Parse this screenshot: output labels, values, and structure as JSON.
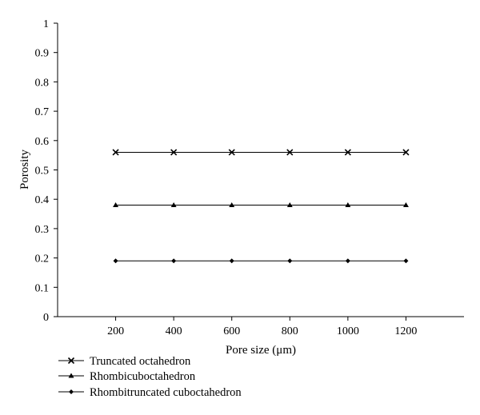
{
  "chart_data": {
    "type": "line",
    "xlabel": "Pore size (μm)",
    "ylabel": "Porosity",
    "x": [
      200,
      400,
      600,
      800,
      1000,
      1200
    ],
    "xlim": [
      0,
      1400
    ],
    "ylim": [
      0,
      1
    ],
    "x_ticks": [
      "200",
      "400",
      "600",
      "800",
      "1000",
      "1200"
    ],
    "y_ticks": [
      "0",
      "0.1",
      "0.2",
      "0.3",
      "0.4",
      "0.5",
      "0.6",
      "0.7",
      "0.8",
      "0.9",
      "1"
    ],
    "grid": false,
    "legend_position": "bottom-left",
    "series": [
      {
        "name": "Truncated octahedron",
        "marker": "x",
        "values": [
          0.56,
          0.56,
          0.56,
          0.56,
          0.56,
          0.56
        ]
      },
      {
        "name": "Rhombicuboctahedron",
        "marker": "triangle",
        "values": [
          0.38,
          0.38,
          0.38,
          0.38,
          0.38,
          0.38
        ]
      },
      {
        "name": "Rhombitruncated cuboctahedron",
        "marker": "diamond",
        "values": [
          0.19,
          0.19,
          0.19,
          0.19,
          0.19,
          0.19
        ]
      }
    ]
  }
}
